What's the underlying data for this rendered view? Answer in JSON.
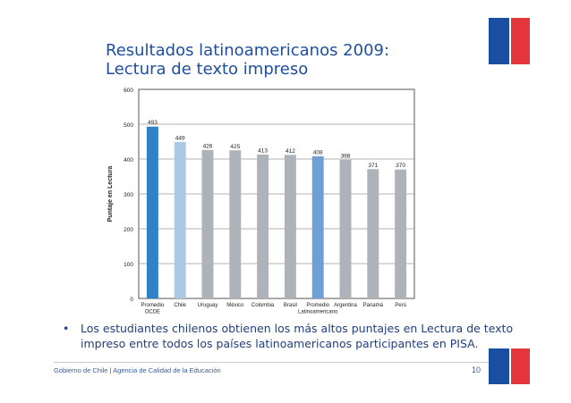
{
  "slide": {
    "title_line1": "Resultados latinoamericanos  2009:",
    "title_line2": "Lectura de texto impreso",
    "bullet_symbol": "•",
    "bullet_text": "Los estudiantes chilenos obtienen los más altos puntajes en Lectura de texto impreso entre todos los países latinoamericanos participantes en PISA.",
    "footer_left": "Gobierno de Chile | Agencia de Calidad de la Educación",
    "page_number": "10"
  },
  "colors": {
    "title": "#1f4e9c",
    "flag_blue": "#1a4ea2",
    "flag_red": "#e3363d",
    "bar_oecd": "#2f83c4",
    "bar_chile": "#a9c9e6",
    "bar_latam_avg": "#6e9fd6",
    "bar_country": "#adb3b8"
  },
  "chart_data": {
    "type": "bar",
    "ylabel": "Puntaje en Lectura",
    "xlabel": "",
    "ylim": [
      0,
      600
    ],
    "yticks": [
      0,
      100,
      200,
      300,
      400,
      500,
      600
    ],
    "grid": true,
    "categories": [
      [
        "Promedio",
        "OCDE"
      ],
      [
        "Chile"
      ],
      [
        "Uruguay"
      ],
      [
        "México"
      ],
      [
        "Colombia"
      ],
      [
        "Brasil"
      ],
      [
        "Promedio",
        "Latinoamericano"
      ],
      [
        "Argentina"
      ],
      [
        "Panamá"
      ],
      [
        "Perú"
      ]
    ],
    "values": [
      493,
      449,
      426,
      425,
      413,
      412,
      408,
      398,
      371,
      370
    ],
    "bar_colors": [
      "bar_oecd",
      "bar_chile",
      "bar_country",
      "bar_country",
      "bar_country",
      "bar_country",
      "bar_latam_avg",
      "bar_country",
      "bar_country",
      "bar_country"
    ]
  }
}
